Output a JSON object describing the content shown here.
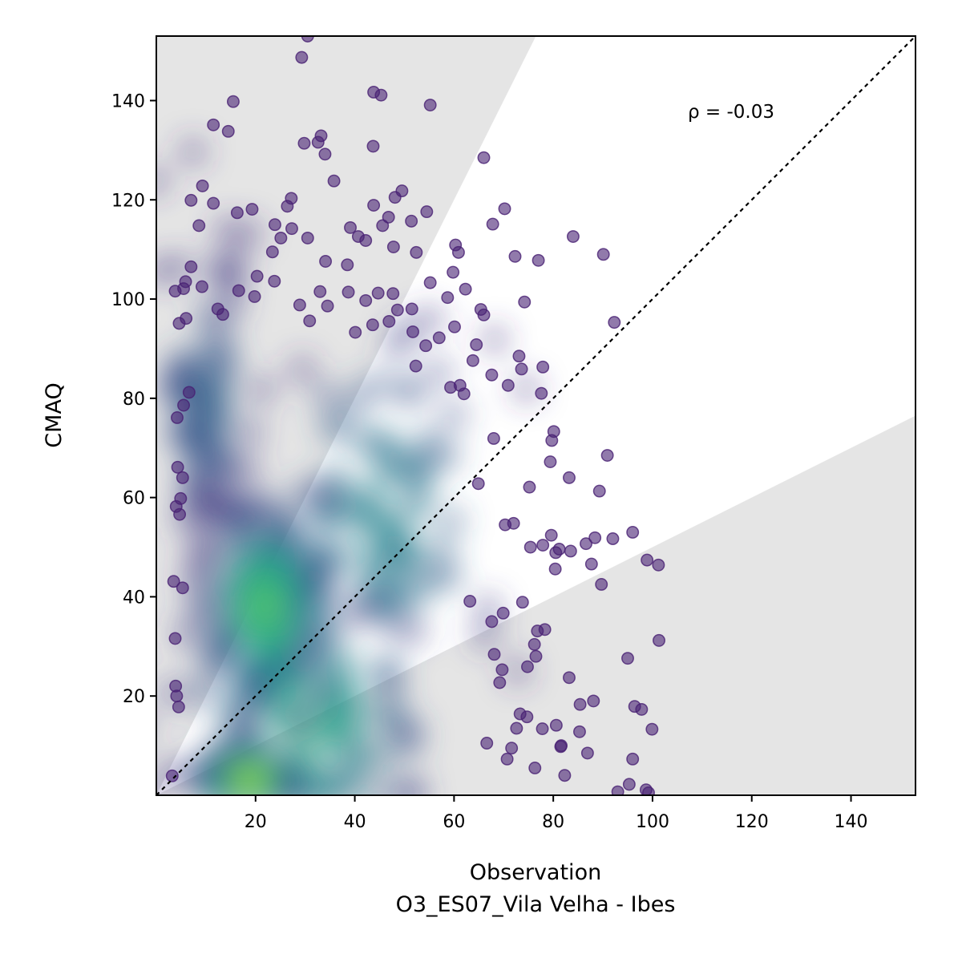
{
  "chart_data": {
    "type": "scatter",
    "title": "",
    "xlabel": "Observation",
    "xlabel_sub": "O3_ES07_Vila Velha - Ibes",
    "ylabel": "CMAQ",
    "xlim": [
      0,
      153
    ],
    "ylim": [
      0,
      153
    ],
    "xticks": [
      20,
      40,
      60,
      80,
      100,
      120,
      140
    ],
    "yticks": [
      20,
      40,
      60,
      80,
      100,
      120,
      140
    ],
    "grid": false,
    "annotation": "ρ = -0.03",
    "reference_line": "1:1",
    "acceptance_band": {
      "upper_slope": 2,
      "lower_slope": 0.5
    },
    "colormap": "viridis",
    "point_color_low_density": "#482173",
    "point_color_high_density": "#d8e219",
    "band_color": "#e5e5e5",
    "density_clusters": [
      {
        "x": 18,
        "y": 3,
        "sx": 4,
        "sy": 2.5,
        "density": 1.0
      },
      {
        "x": 22,
        "y": 38,
        "sx": 6,
        "sy": 10,
        "density": 0.7
      },
      {
        "x": 30,
        "y": 15,
        "sx": 12,
        "sy": 15,
        "density": 0.55
      },
      {
        "x": 45,
        "y": 55,
        "sx": 12,
        "sy": 20,
        "density": 0.35
      },
      {
        "x": 10,
        "y": 80,
        "sx": 5,
        "sy": 15,
        "density": 0.2
      }
    ],
    "points": [
      [
        30.5,
        153
      ],
      [
        29.3,
        148.7
      ],
      [
        15.5,
        139.8
      ],
      [
        14.5,
        133.8
      ],
      [
        11.5,
        135.1
      ],
      [
        29.8,
        131.4
      ],
      [
        33.2,
        132.9
      ],
      [
        32.6,
        131.6
      ],
      [
        34.0,
        129.2
      ],
      [
        43.8,
        141.7
      ],
      [
        45.3,
        141.1
      ],
      [
        43.7,
        130.8
      ],
      [
        55.2,
        139.1
      ],
      [
        66.0,
        128.5
      ],
      [
        35.8,
        123.8
      ],
      [
        9.3,
        122.8
      ],
      [
        7.0,
        119.9
      ],
      [
        11.5,
        119.3
      ],
      [
        19.3,
        118.1
      ],
      [
        16.3,
        117.4
      ],
      [
        27.2,
        120.3
      ],
      [
        26.4,
        118.7
      ],
      [
        43.8,
        118.9
      ],
      [
        48.1,
        120.5
      ],
      [
        49.5,
        121.8
      ],
      [
        70.2,
        118.2
      ],
      [
        51.4,
        115.7
      ],
      [
        54.5,
        117.6
      ],
      [
        67.8,
        115.1
      ],
      [
        84.0,
        112.6
      ],
      [
        39.1,
        114.4
      ],
      [
        40.7,
        112.6
      ],
      [
        42.2,
        111.8
      ],
      [
        46.8,
        116.5
      ],
      [
        45.6,
        114.8
      ],
      [
        30.5,
        112.3
      ],
      [
        27.3,
        114.2
      ],
      [
        23.9,
        115.0
      ],
      [
        25.1,
        112.3
      ],
      [
        8.6,
        114.8
      ],
      [
        60.3,
        110.9
      ],
      [
        60.9,
        109.4
      ],
      [
        52.4,
        109.4
      ],
      [
        47.8,
        110.5
      ],
      [
        72.3,
        108.6
      ],
      [
        77.0,
        107.8
      ],
      [
        90.1,
        109.0
      ],
      [
        7.0,
        106.5
      ],
      [
        23.4,
        109.5
      ],
      [
        34.1,
        107.6
      ],
      [
        38.5,
        106.9
      ],
      [
        59.8,
        105.4
      ],
      [
        55.2,
        103.3
      ],
      [
        58.7,
        100.3
      ],
      [
        62.3,
        102.0
      ],
      [
        65.4,
        97.9
      ],
      [
        66.0,
        96.8
      ],
      [
        74.2,
        99.4
      ],
      [
        92.3,
        95.3
      ],
      [
        60.1,
        94.4
      ],
      [
        57.0,
        92.2
      ],
      [
        54.3,
        90.6
      ],
      [
        51.7,
        93.4
      ],
      [
        52.3,
        86.5
      ],
      [
        64.5,
        90.8
      ],
      [
        63.8,
        87.6
      ],
      [
        73.1,
        88.5
      ],
      [
        73.6,
        85.9
      ],
      [
        77.9,
        86.3
      ],
      [
        67.6,
        84.7
      ],
      [
        70.9,
        82.6
      ],
      [
        61.2,
        82.6
      ],
      [
        62.0,
        80.9
      ],
      [
        77.6,
        81.0
      ],
      [
        59.3,
        82.2
      ],
      [
        80.1,
        73.3
      ],
      [
        79.7,
        71.5
      ],
      [
        79.4,
        67.2
      ],
      [
        68.0,
        71.9
      ],
      [
        90.9,
        68.5
      ],
      [
        75.2,
        62.1
      ],
      [
        64.9,
        62.8
      ],
      [
        89.3,
        61.3
      ],
      [
        83.2,
        64.0
      ],
      [
        88.4,
        51.9
      ],
      [
        92.0,
        51.7
      ],
      [
        96.0,
        53.0
      ],
      [
        79.6,
        52.4
      ],
      [
        75.4,
        50.0
      ],
      [
        77.9,
        50.4
      ],
      [
        81.2,
        49.6
      ],
      [
        83.5,
        49.2
      ],
      [
        86.6,
        50.7
      ],
      [
        70.3,
        54.5
      ],
      [
        72.0,
        54.8
      ],
      [
        87.7,
        46.6
      ],
      [
        98.9,
        47.4
      ],
      [
        101.2,
        46.4
      ],
      [
        89.7,
        42.5
      ],
      [
        73.8,
        38.9
      ],
      [
        80.5,
        48.9
      ],
      [
        80.4,
        45.6
      ],
      [
        63.2,
        39.1
      ],
      [
        67.6,
        35.0
      ],
      [
        69.9,
        36.7
      ],
      [
        78.3,
        33.4
      ],
      [
        76.8,
        33.1
      ],
      [
        76.2,
        30.4
      ],
      [
        76.5,
        28.0
      ],
      [
        74.8,
        25.9
      ],
      [
        68.1,
        28.4
      ],
      [
        69.7,
        25.3
      ],
      [
        69.2,
        22.7
      ],
      [
        73.3,
        16.4
      ],
      [
        74.7,
        15.8
      ],
      [
        72.6,
        13.5
      ],
      [
        77.8,
        13.4
      ],
      [
        80.6,
        14.1
      ],
      [
        83.2,
        23.7
      ],
      [
        85.4,
        18.3
      ],
      [
        88.1,
        19.0
      ],
      [
        96.4,
        17.9
      ],
      [
        97.8,
        17.3
      ],
      [
        95.0,
        27.6
      ],
      [
        101.3,
        31.2
      ],
      [
        99.9,
        13.3
      ],
      [
        96.0,
        7.3
      ],
      [
        85.3,
        12.8
      ],
      [
        81.6,
        10.0
      ],
      [
        81.5,
        9.8
      ],
      [
        86.9,
        8.5
      ],
      [
        82.3,
        4.0
      ],
      [
        71.6,
        9.5
      ],
      [
        70.7,
        7.3
      ],
      [
        66.6,
        10.5
      ],
      [
        76.3,
        5.5
      ],
      [
        93.0,
        0.7
      ],
      [
        95.3,
        2.2
      ],
      [
        98.7,
        1.1
      ],
      [
        99.2,
        0.5
      ],
      [
        4.6,
        95.1
      ],
      [
        5.9,
        103.5
      ],
      [
        5.5,
        102.1
      ],
      [
        3.8,
        101.6
      ],
      [
        6.0,
        96.1
      ],
      [
        6.6,
        81.2
      ],
      [
        5.5,
        78.6
      ],
      [
        4.2,
        76.1
      ],
      [
        4.3,
        66.1
      ],
      [
        5.3,
        64.0
      ],
      [
        4.9,
        59.8
      ],
      [
        4.0,
        58.2
      ],
      [
        4.7,
        56.6
      ],
      [
        5.3,
        41.8
      ],
      [
        3.5,
        43.1
      ],
      [
        3.8,
        31.6
      ],
      [
        3.9,
        22.0
      ],
      [
        4.1,
        20.0
      ],
      [
        4.5,
        17.8
      ],
      [
        3.2,
        3.9
      ],
      [
        12.4,
        98.0
      ],
      [
        9.2,
        102.5
      ],
      [
        13.4,
        96.9
      ],
      [
        16.6,
        101.7
      ],
      [
        20.3,
        104.6
      ],
      [
        19.8,
        100.5
      ],
      [
        23.8,
        103.6
      ],
      [
        28.9,
        98.8
      ],
      [
        30.9,
        95.6
      ],
      [
        33.0,
        101.5
      ],
      [
        34.5,
        98.6
      ],
      [
        38.7,
        101.4
      ],
      [
        42.2,
        99.7
      ],
      [
        44.7,
        101.2
      ],
      [
        46.9,
        95.5
      ],
      [
        48.6,
        97.8
      ],
      [
        51.5,
        98.0
      ],
      [
        47.7,
        101.1
      ],
      [
        43.6,
        94.8
      ],
      [
        40.1,
        93.3
      ]
    ]
  }
}
